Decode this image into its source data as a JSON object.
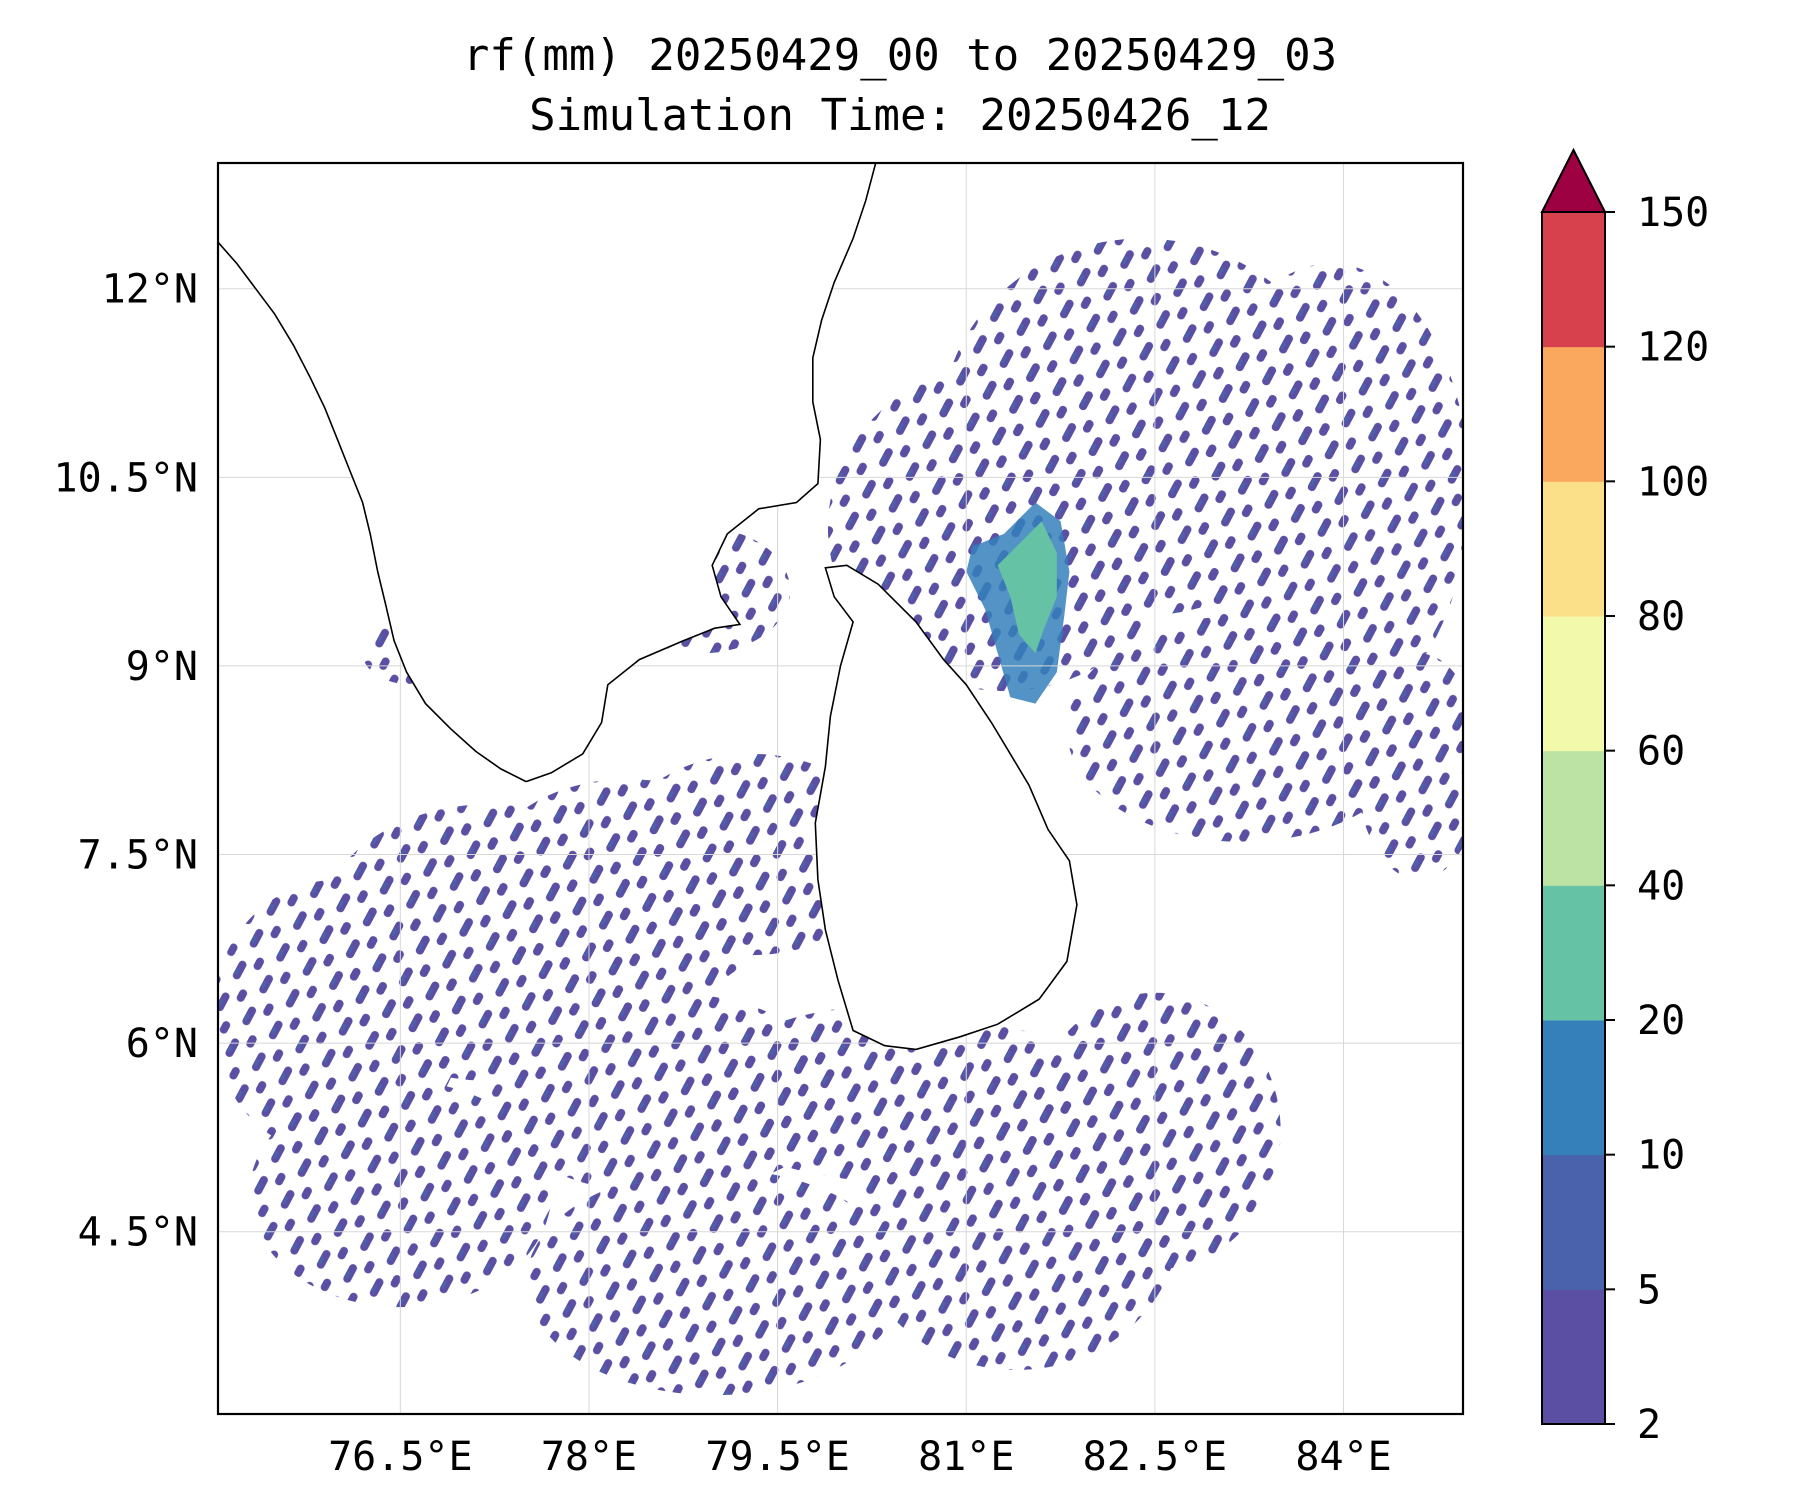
{
  "title": {
    "line1": "rf(mm) 20250429_00 to 20250429_03",
    "line2": "Simulation Time: 20250426_12"
  },
  "map": {
    "lon_range": [
      75.05,
      84.95
    ],
    "lat_range": [
      3.05,
      13.0
    ],
    "lon_ticks": [
      {
        "value": 76.5,
        "label": "76.5°E"
      },
      {
        "value": 78.0,
        "label": "78°E"
      },
      {
        "value": 79.5,
        "label": "79.5°E"
      },
      {
        "value": 81.0,
        "label": "81°E"
      },
      {
        "value": 82.5,
        "label": "82.5°E"
      },
      {
        "value": 84.0,
        "label": "84°E"
      }
    ],
    "lat_ticks": [
      {
        "value": 12.0,
        "label": "12°N"
      },
      {
        "value": 10.5,
        "label": "10.5°N"
      },
      {
        "value": 9.0,
        "label": "9°N"
      },
      {
        "value": 7.5,
        "label": "7.5°N"
      },
      {
        "value": 6.0,
        "label": "6°N"
      },
      {
        "value": 4.5,
        "label": "4.5°N"
      }
    ],
    "grid": true,
    "coastline": {
      "india_west": [
        [
          75.05,
          12.37
        ],
        [
          75.2,
          12.2
        ],
        [
          75.35,
          12.0
        ],
        [
          75.5,
          11.8
        ],
        [
          75.65,
          11.55
        ],
        [
          75.78,
          11.3
        ],
        [
          75.9,
          11.05
        ],
        [
          76.0,
          10.8
        ],
        [
          76.1,
          10.55
        ],
        [
          76.2,
          10.3
        ],
        [
          76.26,
          10.05
        ],
        [
          76.32,
          9.75
        ],
        [
          76.38,
          9.5
        ],
        [
          76.45,
          9.2
        ],
        [
          76.55,
          8.95
        ],
        [
          76.7,
          8.7
        ],
        [
          76.9,
          8.5
        ],
        [
          77.1,
          8.32
        ],
        [
          77.3,
          8.18
        ],
        [
          77.5,
          8.08
        ]
      ],
      "india_east": [
        [
          77.5,
          8.08
        ],
        [
          77.7,
          8.15
        ],
        [
          77.95,
          8.3
        ],
        [
          78.1,
          8.55
        ],
        [
          78.15,
          8.85
        ],
        [
          78.4,
          9.05
        ],
        [
          78.75,
          9.2
        ],
        [
          79.0,
          9.3
        ],
        [
          79.2,
          9.33
        ],
        [
          79.05,
          9.55
        ],
        [
          78.98,
          9.8
        ],
        [
          79.1,
          10.05
        ],
        [
          79.35,
          10.25
        ],
        [
          79.65,
          10.3
        ],
        [
          79.82,
          10.45
        ],
        [
          79.84,
          10.8
        ],
        [
          79.78,
          11.1
        ],
        [
          79.78,
          11.45
        ],
        [
          79.85,
          11.75
        ],
        [
          79.95,
          12.05
        ],
        [
          80.1,
          12.4
        ],
        [
          80.2,
          12.7
        ],
        [
          80.28,
          13.0
        ]
      ],
      "sri_lanka": [
        [
          79.88,
          9.78
        ],
        [
          80.05,
          9.8
        ],
        [
          80.3,
          9.65
        ],
        [
          80.6,
          9.35
        ],
        [
          80.82,
          9.05
        ],
        [
          81.0,
          8.85
        ],
        [
          81.2,
          8.55
        ],
        [
          81.35,
          8.3
        ],
        [
          81.5,
          8.05
        ],
        [
          81.65,
          7.7
        ],
        [
          81.82,
          7.45
        ],
        [
          81.88,
          7.1
        ],
        [
          81.8,
          6.65
        ],
        [
          81.58,
          6.35
        ],
        [
          81.25,
          6.15
        ],
        [
          80.95,
          6.05
        ],
        [
          80.6,
          5.95
        ],
        [
          80.35,
          5.98
        ],
        [
          80.1,
          6.1
        ],
        [
          79.98,
          6.5
        ],
        [
          79.88,
          6.9
        ],
        [
          79.82,
          7.3
        ],
        [
          79.8,
          7.75
        ],
        [
          79.88,
          8.2
        ],
        [
          79.92,
          8.6
        ],
        [
          80.0,
          9.0
        ],
        [
          80.1,
          9.35
        ],
        [
          79.95,
          9.55
        ],
        [
          79.88,
          9.78
        ]
      ]
    },
    "rain_regions": [
      {
        "lon": 79.3,
        "lat": 7.5,
        "rx": 1.1,
        "ry": 0.8
      },
      {
        "lon": 78.3,
        "lat": 7.2,
        "rx": 1.2,
        "ry": 0.9
      },
      {
        "lon": 77.2,
        "lat": 6.8,
        "rx": 1.4,
        "ry": 1.1
      },
      {
        "lon": 76.0,
        "lat": 6.2,
        "rx": 1.0,
        "ry": 1.1
      },
      {
        "lon": 78.6,
        "lat": 5.6,
        "rx": 1.4,
        "ry": 0.8
      },
      {
        "lon": 80.4,
        "lat": 5.6,
        "rx": 1.5,
        "ry": 0.7
      },
      {
        "lon": 81.4,
        "lat": 4.6,
        "rx": 1.3,
        "ry": 1.2
      },
      {
        "lon": 82.5,
        "lat": 5.3,
        "rx": 1.0,
        "ry": 1.1
      },
      {
        "lon": 79.0,
        "lat": 4.1,
        "rx": 1.5,
        "ry": 0.9
      },
      {
        "lon": 76.5,
        "lat": 4.8,
        "rx": 1.2,
        "ry": 0.9
      },
      {
        "lon": 82.4,
        "lat": 10.9,
        "rx": 1.6,
        "ry": 1.5
      },
      {
        "lon": 83.9,
        "lat": 10.4,
        "rx": 1.1,
        "ry": 1.8
      },
      {
        "lon": 81.3,
        "lat": 10.1,
        "rx": 1.4,
        "ry": 1.3
      },
      {
        "lon": 83.2,
        "lat": 8.5,
        "rx": 1.4,
        "ry": 0.9
      },
      {
        "lon": 84.6,
        "lat": 8.2,
        "rx": 0.5,
        "ry": 0.9
      },
      {
        "lon": 78.9,
        "lat": 9.6,
        "rx": 0.7,
        "ry": 0.5
      },
      {
        "lon": 76.6,
        "lat": 9.1,
        "rx": 0.4,
        "ry": 0.25
      }
    ],
    "heavy_rain": {
      "outer": [
        [
          81.3,
          10.05
        ],
        [
          81.55,
          10.3
        ],
        [
          81.75,
          10.15
        ],
        [
          81.82,
          9.75
        ],
        [
          81.78,
          9.4
        ],
        [
          81.72,
          8.95
        ],
        [
          81.55,
          8.7
        ],
        [
          81.35,
          8.75
        ],
        [
          81.25,
          9.1
        ],
        [
          81.15,
          9.45
        ],
        [
          81.0,
          9.75
        ],
        [
          81.05,
          9.95
        ]
      ],
      "core": [
        [
          81.45,
          10.0
        ],
        [
          81.6,
          10.15
        ],
        [
          81.72,
          9.9
        ],
        [
          81.72,
          9.55
        ],
        [
          81.62,
          9.3
        ],
        [
          81.55,
          9.1
        ],
        [
          81.42,
          9.25
        ],
        [
          81.35,
          9.55
        ],
        [
          81.25,
          9.8
        ]
      ]
    }
  },
  "colorbar": {
    "levels": [
      2,
      5,
      10,
      20,
      40,
      60,
      80,
      100,
      120,
      150
    ],
    "labels": [
      "2",
      "5",
      "10",
      "20",
      "40",
      "60",
      "80",
      "100",
      "120",
      "150"
    ],
    "colors": [
      "#5a4fa2",
      "#4a62ac",
      "#3580bb",
      "#66c2a5",
      "#bde3a4",
      "#f3f9ab",
      "#fce089",
      "#f9a85d",
      "#d7404d"
    ],
    "extend_color": "#9e0142",
    "extend": "max"
  },
  "colors": {
    "coastline": "#000000",
    "gridline": "#d8d8d8",
    "frame": "#000000"
  }
}
